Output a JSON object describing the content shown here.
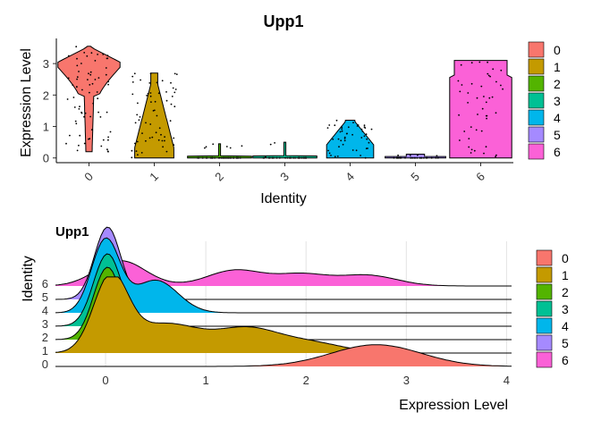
{
  "chart_data": [
    {
      "type": "violin",
      "title": "Upp1",
      "xlabel": "Identity",
      "ylabel": "Expression Level",
      "categories": [
        "0",
        "1",
        "2",
        "3",
        "4",
        "5",
        "6"
      ],
      "ylim": [
        -0.15,
        3.8
      ],
      "yticks": [
        0,
        1,
        2,
        3
      ],
      "violin_ranges": [
        [
          0.2,
          3.55
        ],
        [
          0,
          2.7
        ],
        [
          0,
          0.45
        ],
        [
          0,
          0.5
        ],
        [
          0,
          1.2
        ],
        [
          0,
          0.12
        ],
        [
          0,
          3.1
        ]
      ],
      "colors": [
        "#F8766D",
        "#C49A00",
        "#53B400",
        "#00C094",
        "#00B6EB",
        "#A58AFF",
        "#FB61D7"
      ],
      "legend": {
        "labels": [
          "0",
          "1",
          "2",
          "3",
          "4",
          "5",
          "6"
        ],
        "position": "right"
      },
      "grid": false
    },
    {
      "type": "ridgeline",
      "title": "Upp1",
      "xlabel": "Expression Level",
      "ylabel": "Identity",
      "categories": [
        "0",
        "1",
        "2",
        "3",
        "4",
        "5",
        "6"
      ],
      "xlim": [
        -0.5,
        4.05
      ],
      "xticks": [
        0,
        1,
        2,
        3,
        4
      ],
      "peaks": [
        {
          "identity": "0",
          "components": [
            [
              2.7,
              0.45,
              1.0
            ]
          ]
        },
        {
          "identity": "1",
          "components": [
            [
              0.05,
              0.17,
              1.0
            ],
            [
              0.6,
              0.35,
              0.4
            ],
            [
              1.4,
              0.3,
              0.3
            ],
            [
              2.0,
              0.35,
              0.15
            ]
          ]
        },
        {
          "identity": "2",
          "components": [
            [
              0.02,
              0.14,
              1.0
            ]
          ]
        },
        {
          "identity": "3",
          "components": [
            [
              0.02,
              0.14,
              1.0
            ]
          ]
        },
        {
          "identity": "4",
          "components": [
            [
              0.0,
              0.14,
              1.0
            ],
            [
              0.5,
              0.22,
              0.45
            ]
          ]
        },
        {
          "identity": "5",
          "components": [
            [
              0.02,
              0.13,
              1.0
            ]
          ]
        },
        {
          "identity": "6",
          "components": [
            [
              0.15,
              0.25,
              0.35
            ],
            [
              1.3,
              0.28,
              0.22
            ],
            [
              1.95,
              0.25,
              0.15
            ],
            [
              2.6,
              0.3,
              0.15
            ]
          ]
        }
      ],
      "colors": [
        "#F8766D",
        "#C49A00",
        "#53B400",
        "#00C094",
        "#00B6EB",
        "#A58AFF",
        "#FB61D7"
      ],
      "legend": {
        "labels": [
          "0",
          "1",
          "2",
          "3",
          "4",
          "5",
          "6"
        ],
        "position": "right"
      },
      "grid": true
    }
  ]
}
